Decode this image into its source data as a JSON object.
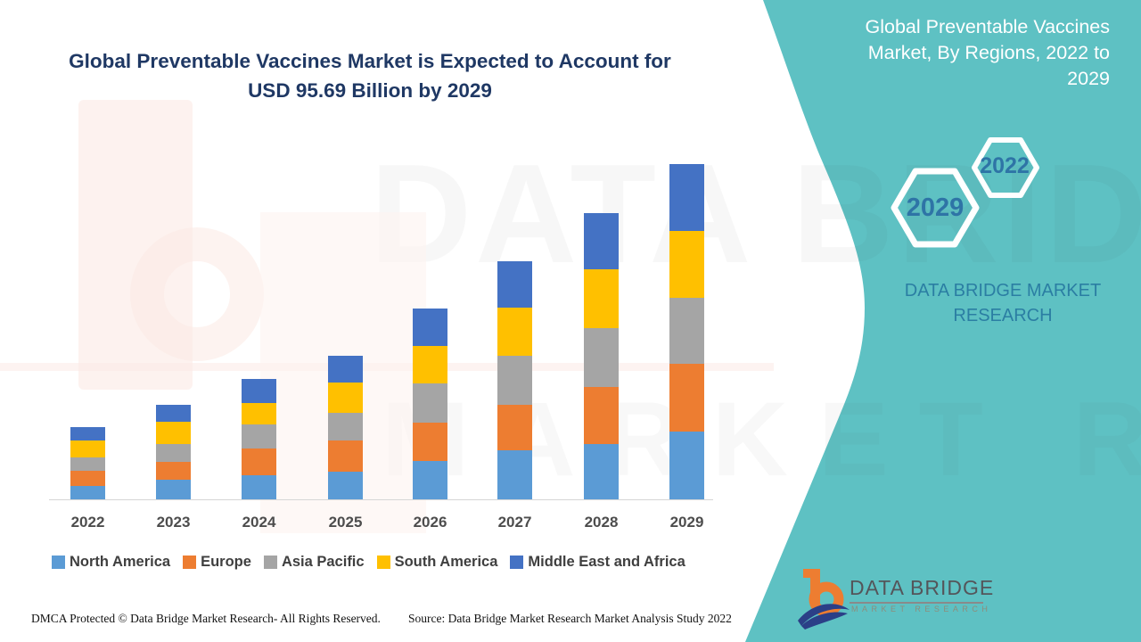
{
  "header": {
    "title_line1": "Global Preventable Vaccines Market is Expected to Account for",
    "title_line2": "USD 95.69 Billion by 2029",
    "title_color": "#1f3864"
  },
  "side_panel": {
    "bg_color": "#5ec1c3",
    "title_lines": [
      "Global Preventable Vaccines",
      "Market, By Regions, 2022 to",
      "2029"
    ],
    "hexagons": [
      {
        "label": "2029"
      },
      {
        "label": "2022"
      }
    ],
    "brand_line1": "DATA BRIDGE MARKET",
    "brand_line2": "RESEARCH",
    "logo": {
      "name": "DATA BRIDGE",
      "subtitle": "MARKET RESEARCH"
    }
  },
  "chart_data": {
    "type": "bar",
    "variant": "stacked-vertical",
    "title": "Global Preventable Vaccines Market, By Regions, 2022 to 2029",
    "unit": "USD Billion",
    "categories": [
      "2022",
      "2023",
      "2024",
      "2025",
      "2026",
      "2027",
      "2028",
      "2029"
    ],
    "series": [
      {
        "name": "North America",
        "color": "#5B9BD5",
        "values": [
          3.8,
          5.6,
          6.9,
          7.9,
          10.9,
          14.0,
          15.8,
          19.3
        ]
      },
      {
        "name": "Europe",
        "color": "#ED7D31",
        "values": [
          4.3,
          5.1,
          7.6,
          8.9,
          10.9,
          13.0,
          16.3,
          19.3
        ]
      },
      {
        "name": "Asia Pacific",
        "color": "#A5A5A5",
        "values": [
          3.8,
          5.1,
          6.9,
          7.9,
          11.2,
          14.0,
          16.8,
          18.8
        ]
      },
      {
        "name": "South America",
        "color": "#FFC000",
        "values": [
          4.8,
          6.4,
          6.1,
          8.7,
          10.7,
          13.7,
          16.8,
          19.1
        ]
      },
      {
        "name": "Middle East and Africa",
        "color": "#4472C4",
        "values": [
          3.8,
          4.8,
          6.9,
          7.6,
          10.7,
          13.2,
          16.0,
          19.2
        ]
      }
    ],
    "totals": [
      20.5,
      27.0,
      34.4,
      41.0,
      54.4,
      67.9,
      81.7,
      95.69
    ],
    "annotation": "USD 95.69 Billion by 2029",
    "axes": {
      "y_axis_visible": false,
      "gridlines": false,
      "x_labels_visible": true
    },
    "legend_position": "bottom"
  },
  "footer": {
    "left": "DMCA Protected © Data Bridge Market Research- All Rights Reserved.",
    "right": "Source: Data Bridge Market Research Market Analysis Study 2022"
  },
  "watermark": {
    "line1": "DATA BRIDGE",
    "line2": "MARKET RESEARCH"
  }
}
